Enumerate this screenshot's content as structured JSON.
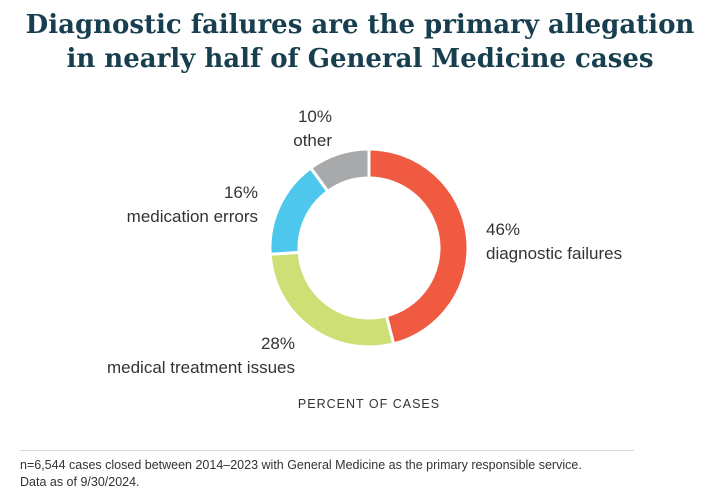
{
  "title": {
    "line1": "Diagnostic failures are the primary allegation",
    "line2": "in nearly half of General Medicine cases"
  },
  "chart_data": {
    "type": "pie",
    "title": "Diagnostic failures are the primary allegation in nearly half of General Medicine cases",
    "xlabel": "PERCENT OF CASES",
    "donut": true,
    "slices": [
      {
        "name": "diagnostic failures",
        "value": 46,
        "label": "46%",
        "color": "#f05a40"
      },
      {
        "name": "medical treatment issues",
        "value": 28,
        "label": "28%",
        "color": "#cddf75"
      },
      {
        "name": "medication errors",
        "value": 16,
        "label": "16%",
        "color": "#4dc7ec"
      },
      {
        "name": "other",
        "value": 10,
        "label": "10%",
        "color": "#a8a9ab"
      }
    ]
  },
  "footnote": {
    "line1": "n=6,544 cases closed between 2014–2023 with General Medicine as the primary responsible service.",
    "line2": "Data as of 9/30/2024."
  }
}
